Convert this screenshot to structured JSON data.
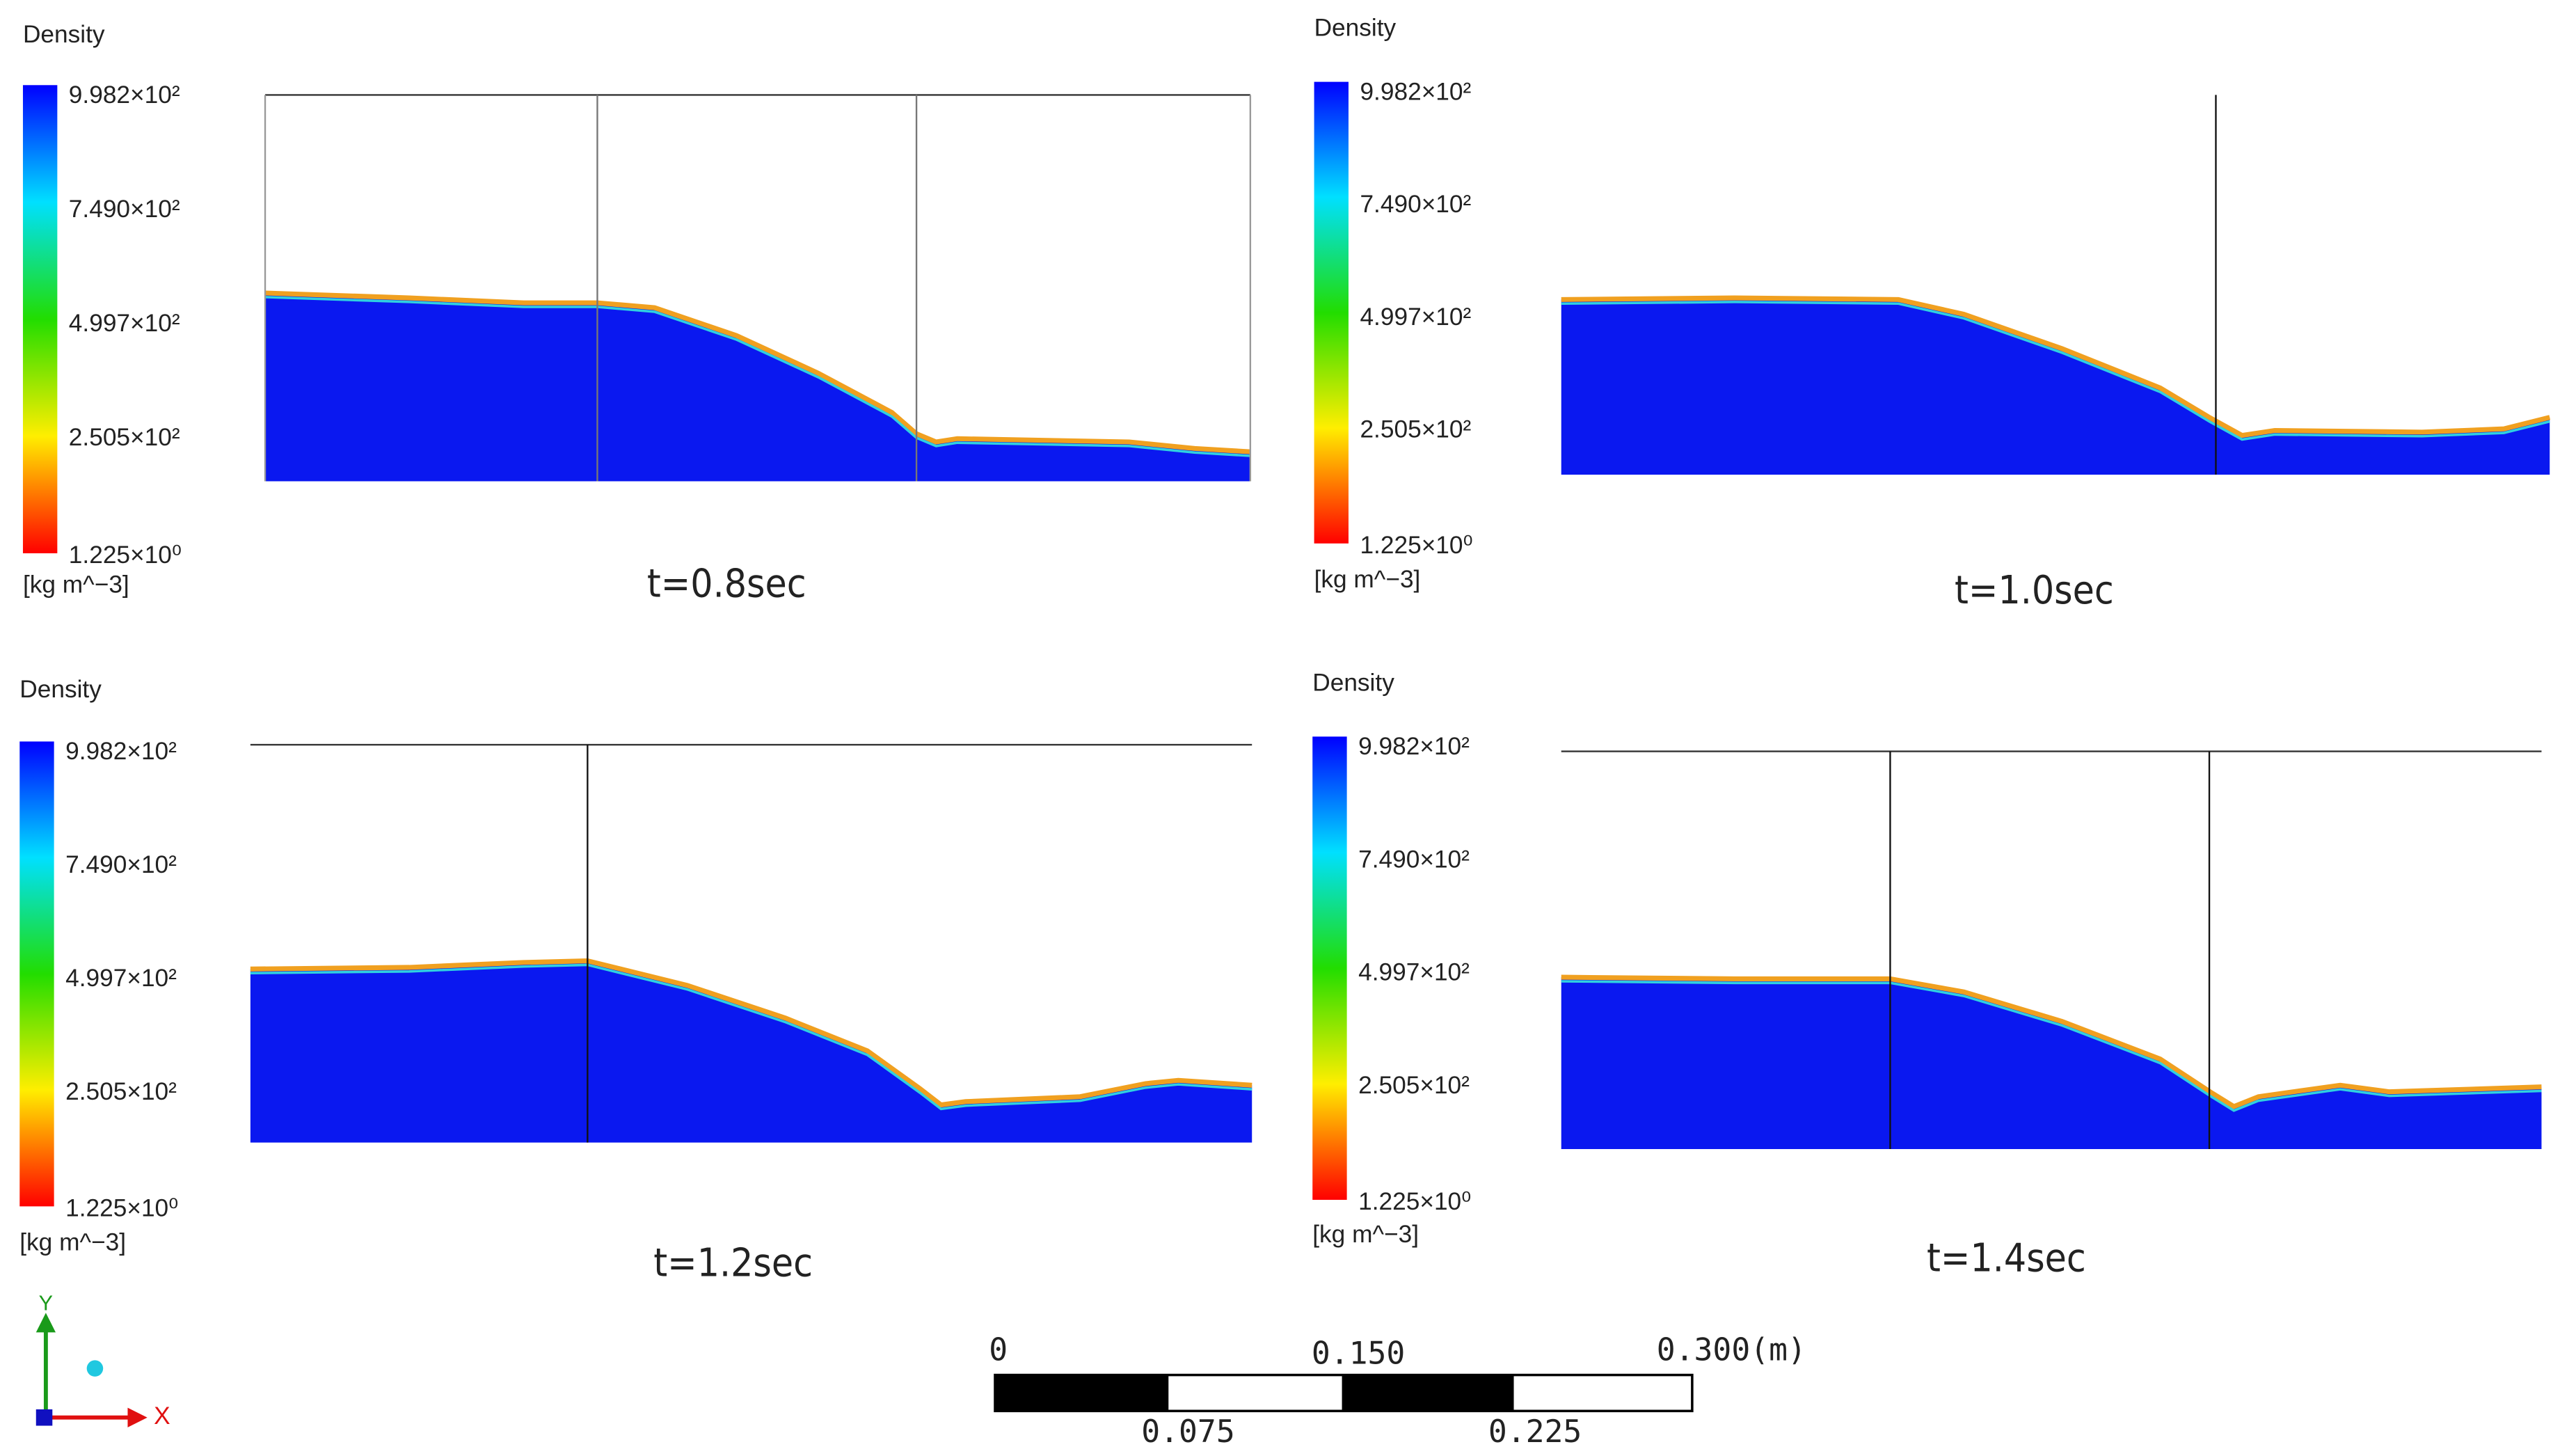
{
  "panels": [
    {
      "legend_title": "Density",
      "ticks": [
        "9.982×10²",
        "7.490×10²",
        "4.997×10²",
        "2.505×10²",
        "1.225×10⁰"
      ],
      "unit": "[kg m^−3]",
      "caption": "t=0.8sec"
    },
    {
      "legend_title": "Density",
      "ticks": [
        "9.982×10²",
        "7.490×10²",
        "4.997×10²",
        "2.505×10²",
        "1.225×10⁰"
      ],
      "unit": "[kg m^−3]",
      "caption": "t=1.0sec"
    },
    {
      "legend_title": "Density",
      "ticks": [
        "9.982×10²",
        "7.490×10²",
        "4.997×10²",
        "2.505×10²",
        "1.225×10⁰"
      ],
      "unit": "[kg m^−3]",
      "caption": "t=1.2sec"
    },
    {
      "legend_title": "Density",
      "ticks": [
        "9.982×10²",
        "7.490×10²",
        "4.997×10²",
        "2.505×10²",
        "1.225×10⁰"
      ],
      "unit": "[kg m^−3]",
      "caption": "t=1.4sec"
    }
  ],
  "scale_bar": {
    "top_labels": [
      "0",
      "0.150",
      "0.300(m)"
    ],
    "bottom_labels": [
      "0.075",
      "0.225"
    ]
  },
  "triad": {
    "y": "Y",
    "x": "X"
  }
}
